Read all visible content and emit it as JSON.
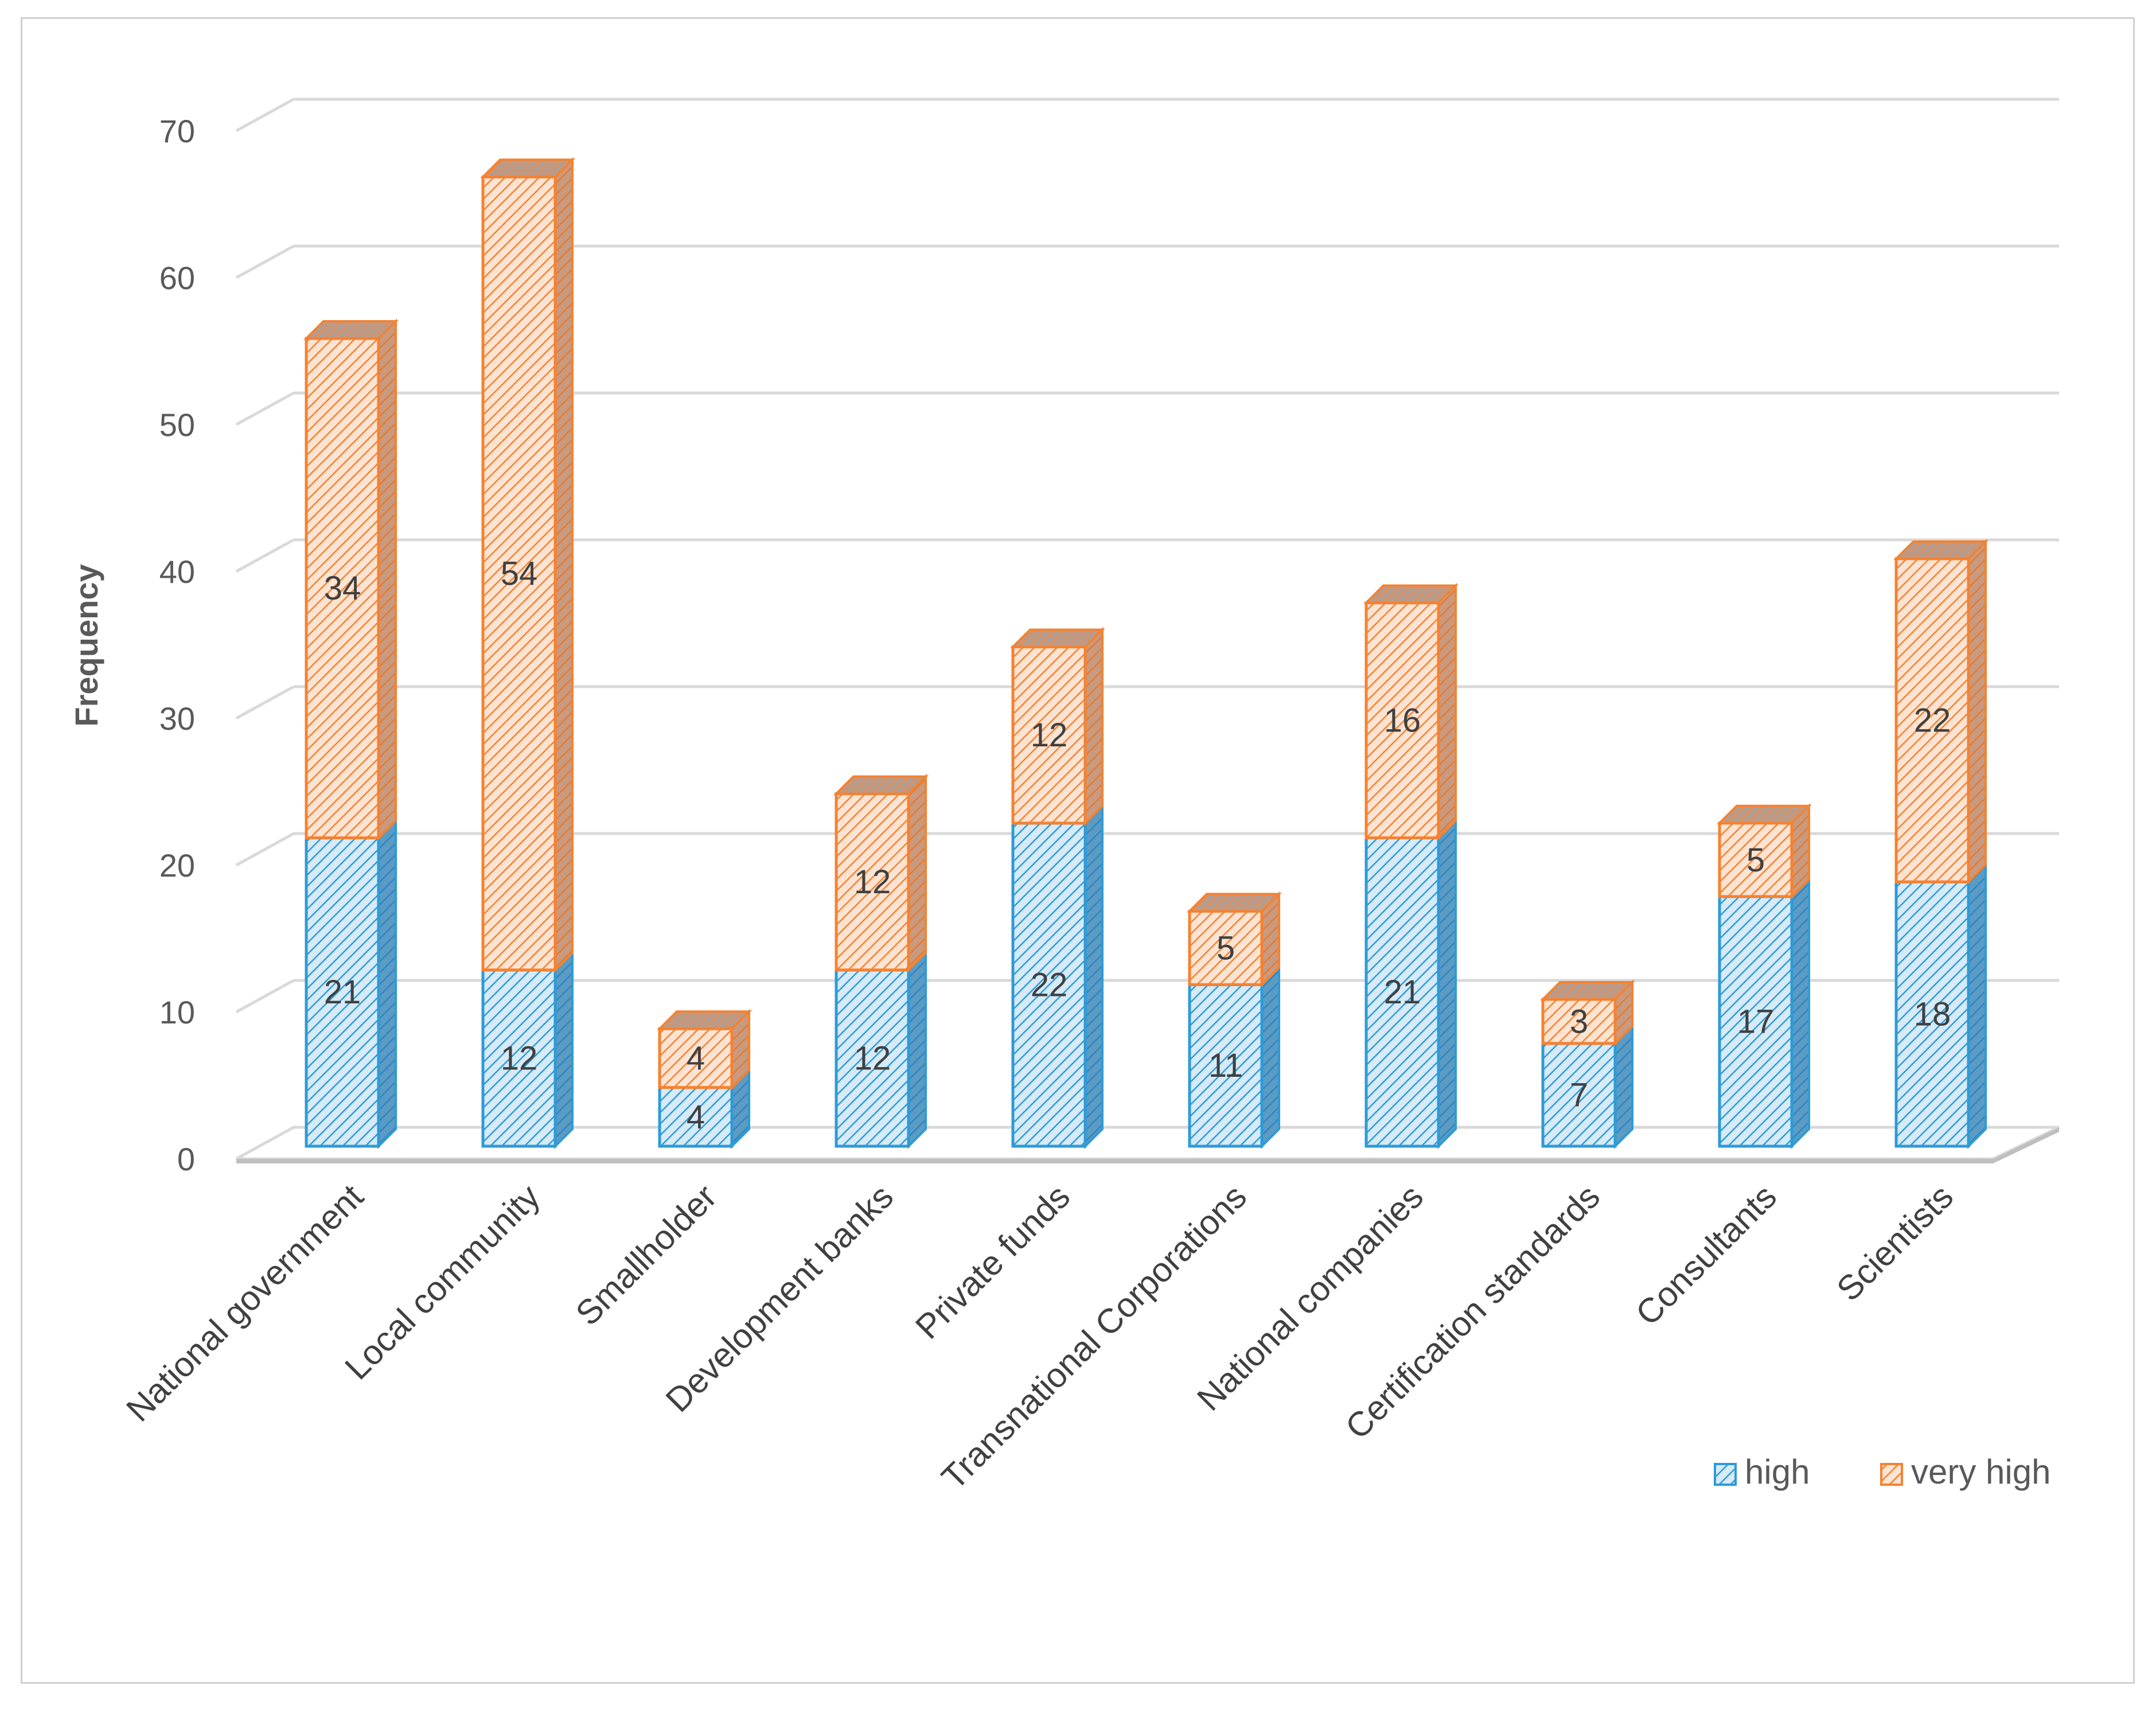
{
  "chart_data": {
    "type": "bar",
    "stacked": true,
    "three_d": true,
    "title": "",
    "xlabel": "",
    "ylabel": "Frequency",
    "ylim": [
      0,
      70
    ],
    "yticks": [
      0,
      10,
      20,
      30,
      40,
      50,
      60,
      70
    ],
    "grid": true,
    "legend_position": "bottom-right",
    "categories": [
      "National government",
      "Local community",
      "Smallholder",
      "Development banks",
      "Private funds",
      "Transnational Corporations",
      "National companies",
      "Certification standards",
      "Consultants",
      "Scientists"
    ],
    "series": [
      {
        "name": "high",
        "color": "#2E9BD6",
        "fill": "#D6EAF8",
        "values": [
          21,
          12,
          4,
          12,
          22,
          11,
          21,
          7,
          17,
          18
        ]
      },
      {
        "name": "very high",
        "color": "#F58231",
        "fill": "#FDE3D2",
        "values": [
          34,
          54,
          4,
          12,
          12,
          5,
          16,
          3,
          5,
          22
        ]
      }
    ]
  }
}
